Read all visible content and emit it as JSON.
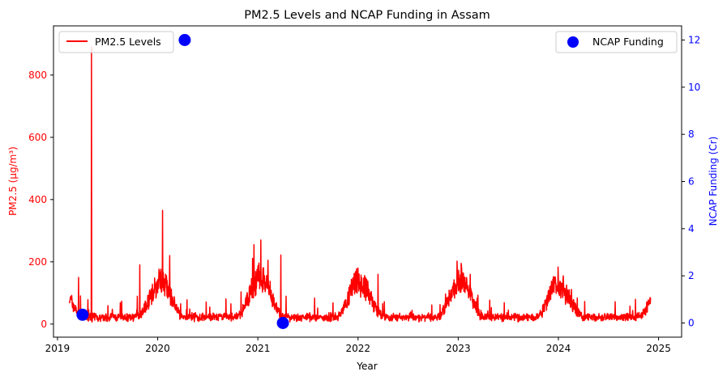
{
  "chart_data": {
    "type": "line",
    "title": "PM2.5 Levels and NCAP Funding in Assam",
    "xlabel": "Year",
    "ylabel_left": "PM2.5 (µg/m³)",
    "ylabel_right": "NCAP Funding (Cr)",
    "xlim": [
      2018.96,
      2025.23
    ],
    "ylim_left": [
      -42,
      958
    ],
    "ylim_right": [
      -0.6,
      12.6
    ],
    "x_ticks": [
      2019,
      2020,
      2021,
      2022,
      2023,
      2024,
      2025
    ],
    "x_tick_labels": [
      "2019",
      "2020",
      "2021",
      "2022",
      "2023",
      "2024",
      "2025"
    ],
    "y_ticks_left": [
      0,
      200,
      400,
      600,
      800
    ],
    "y_tick_labels_left": [
      "0",
      "200",
      "400",
      "600",
      "800"
    ],
    "y_ticks_right": [
      0,
      2,
      4,
      6,
      8,
      10,
      12
    ],
    "y_tick_labels_right": [
      "0",
      "2",
      "4",
      "6",
      "8",
      "10",
      "12"
    ],
    "grid": false,
    "series": [
      {
        "name": "PM2.5 Levels",
        "kind": "line",
        "axis": "left",
        "color": "#ff0000",
        "x_start": 2019.12,
        "x_end": 2024.92,
        "spikes": [
          {
            "x": 2019.34,
            "y": 890
          },
          {
            "x": 2020.05,
            "y": 365
          },
          {
            "x": 2020.96,
            "y": 255
          },
          {
            "x": 2021.03,
            "y": 270
          },
          {
            "x": 2021.23,
            "y": 222
          },
          {
            "x": 2021.1,
            "y": 205
          },
          {
            "x": 2019.82,
            "y": 190
          },
          {
            "x": 2020.12,
            "y": 220
          },
          {
            "x": 2022.0,
            "y": 180
          },
          {
            "x": 2022.2,
            "y": 160
          },
          {
            "x": 2023.03,
            "y": 195
          },
          {
            "x": 2023.12,
            "y": 160
          },
          {
            "x": 2024.05,
            "y": 155
          },
          {
            "x": 2019.21,
            "y": 150
          }
        ]
      },
      {
        "name": "NCAP Funding",
        "kind": "scatter",
        "axis": "right",
        "color": "#0000ff",
        "points": [
          {
            "x": 2019.25,
            "y": 0.35
          },
          {
            "x": 2020.27,
            "y": 12.0
          },
          {
            "x": 2021.25,
            "y": 0.0
          }
        ]
      }
    ],
    "legend_left_position": "upper-left",
    "legend_right_position": "upper-right"
  }
}
